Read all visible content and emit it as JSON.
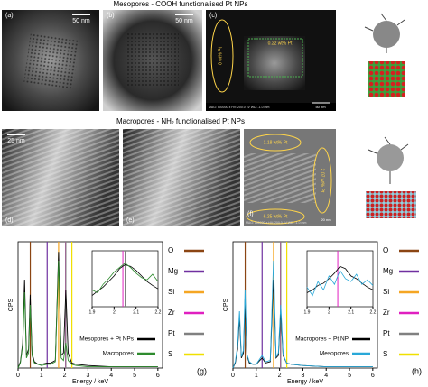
{
  "figure": {
    "top_title": "Mesopores - COOH functionalised Pt NPs",
    "panels": [
      {
        "label": "(a)",
        "scale": "50 nm"
      },
      {
        "label": "(b)",
        "scale": "50 nm"
      },
      {
        "label": "(c)",
        "annotations": [
          "0 wt% Pt",
          "0.22 wt% Pt"
        ],
        "info": "MAG: 500000 x HV: 200.0 kV WD: -1.0 mm",
        "scale": "50 nm"
      },
      {
        "label": "(d)",
        "scale": "25 nm"
      },
      {
        "label": "(e)"
      },
      {
        "label": "(f)",
        "annotations": [
          "1.18 wt% Pt",
          "2.07 wt% Pt",
          "6.25 wt% Pt"
        ],
        "info": "MAG: 100000 x HV: 200.0 kV WD: -1.0 mm",
        "scale": "20 nm"
      }
    ],
    "middle_title": [
      "Macropores - NH",
      "2",
      " functionalised Pt NPs"
    ]
  },
  "chart_data": [
    {
      "type": "line",
      "label": "(g)",
      "x_label": "Energy / keV",
      "y_label": "CPS",
      "xlim": [
        0,
        6.2
      ],
      "xticks": [
        0,
        1,
        2,
        3,
        4,
        5,
        6
      ],
      "ylim": [
        0,
        100
      ],
      "x": [
        0,
        0.1,
        0.2,
        0.28,
        0.36,
        0.45,
        0.52,
        0.6,
        0.7,
        0.85,
        1.0,
        1.25,
        1.4,
        1.6,
        1.74,
        1.85,
        1.95,
        2.05,
        2.15,
        2.3,
        2.5,
        3,
        4,
        5,
        6
      ],
      "series": [
        {
          "name": "Mesopores + Pt NPs",
          "color": "#000000",
          "values": [
            0,
            5,
            20,
            70,
            10,
            15,
            58,
            12,
            5,
            3,
            3,
            4,
            4,
            6,
            92,
            10,
            12,
            62,
            12,
            4,
            3,
            2,
            1,
            1,
            1
          ]
        },
        {
          "name": "Macropores",
          "color": "#2e8b2e",
          "values": [
            0,
            4,
            18,
            60,
            8,
            12,
            50,
            10,
            4,
            3,
            2,
            3,
            3,
            5,
            85,
            8,
            6,
            20,
            6,
            3,
            2,
            1,
            1,
            1,
            1
          ]
        }
      ],
      "elements": [
        {
          "name": "O",
          "color": "#8b4513",
          "energy": 0.525
        },
        {
          "name": "Mg",
          "color": "#7030a0",
          "energy": 1.25
        },
        {
          "name": "Si",
          "color": "#f5a623",
          "energy": 1.74
        },
        {
          "name": "Zr",
          "color": "#e020c0",
          "energy": 2.04
        },
        {
          "name": "Pt",
          "color": "#808080",
          "energy": 2.05
        },
        {
          "name": "S",
          "color": "#f0e000",
          "energy": 2.31
        }
      ],
      "inset": {
        "xlim": [
          1.9,
          2.2
        ],
        "xticks": [
          1.9,
          2,
          2.1,
          2.2
        ],
        "ylim": [
          0,
          100
        ],
        "x": [
          1.9,
          1.925,
          1.95,
          1.975,
          2.0,
          2.025,
          2.05,
          2.075,
          2.1,
          2.125,
          2.15,
          2.175,
          2.2
        ],
        "series": [
          {
            "color": "#000000",
            "values": [
              20,
              28,
              35,
              45,
              55,
              68,
              75,
              72,
              65,
              55,
              45,
              38,
              32
            ]
          },
          {
            "color": "#2e8b2e",
            "values": [
              30,
              25,
              40,
              50,
              62,
              70,
              78,
              70,
              60,
              52,
              48,
              58,
              45
            ]
          }
        ]
      }
    },
    {
      "type": "line",
      "label": "(h)",
      "x_label": "Energy / keV",
      "y_label": "CPS",
      "xlim": [
        0,
        6.2
      ],
      "xticks": [
        0,
        1,
        2,
        3,
        4,
        5,
        6
      ],
      "ylim": [
        0,
        100
      ],
      "x": [
        0,
        0.1,
        0.2,
        0.28,
        0.36,
        0.45,
        0.52,
        0.6,
        0.7,
        0.85,
        1.0,
        1.25,
        1.4,
        1.6,
        1.74,
        1.85,
        1.95,
        2.05,
        2.15,
        2.3,
        2.5,
        3,
        4,
        5,
        6
      ],
      "series": [
        {
          "name": "Macropores + Pt NP",
          "color": "#000000",
          "values": [
            0,
            4,
            15,
            40,
            8,
            12,
            55,
            10,
            4,
            3,
            3,
            8,
            4,
            5,
            70,
            8,
            10,
            45,
            10,
            4,
            3,
            2,
            1,
            1,
            1
          ]
        },
        {
          "name": "Mesopores",
          "color": "#29a8d8",
          "values": [
            0,
            5,
            18,
            45,
            9,
            14,
            62,
            11,
            5,
            3,
            3,
            10,
            5,
            6,
            85,
            9,
            12,
            50,
            11,
            4,
            3,
            2,
            1,
            1,
            1
          ]
        }
      ],
      "elements": [
        {
          "name": "O",
          "color": "#8b4513",
          "energy": 0.525
        },
        {
          "name": "Mg",
          "color": "#7030a0",
          "energy": 1.25
        },
        {
          "name": "Si",
          "color": "#f5a623",
          "energy": 1.74
        },
        {
          "name": "Zr",
          "color": "#e020c0",
          "energy": 2.04
        },
        {
          "name": "Pt",
          "color": "#808080",
          "energy": 2.05
        },
        {
          "name": "S",
          "color": "#f0e000",
          "energy": 2.31
        }
      ],
      "inset": {
        "xlim": [
          1.9,
          2.2
        ],
        "xticks": [
          1.9,
          2,
          2.1,
          2.2
        ],
        "ylim": [
          0,
          100
        ],
        "x": [
          1.9,
          1.925,
          1.95,
          1.975,
          2.0,
          2.025,
          2.05,
          2.075,
          2.1,
          2.125,
          2.15,
          2.175,
          2.2
        ],
        "series": [
          {
            "color": "#000000",
            "values": [
              25,
              30,
              38,
              42,
              50,
              60,
              72,
              68,
              55,
              50,
              42,
              35,
              30
            ]
          },
          {
            "color": "#29a8d8",
            "values": [
              35,
              20,
              45,
              30,
              55,
              40,
              65,
              50,
              45,
              58,
              40,
              48,
              38
            ]
          }
        ]
      }
    }
  ]
}
